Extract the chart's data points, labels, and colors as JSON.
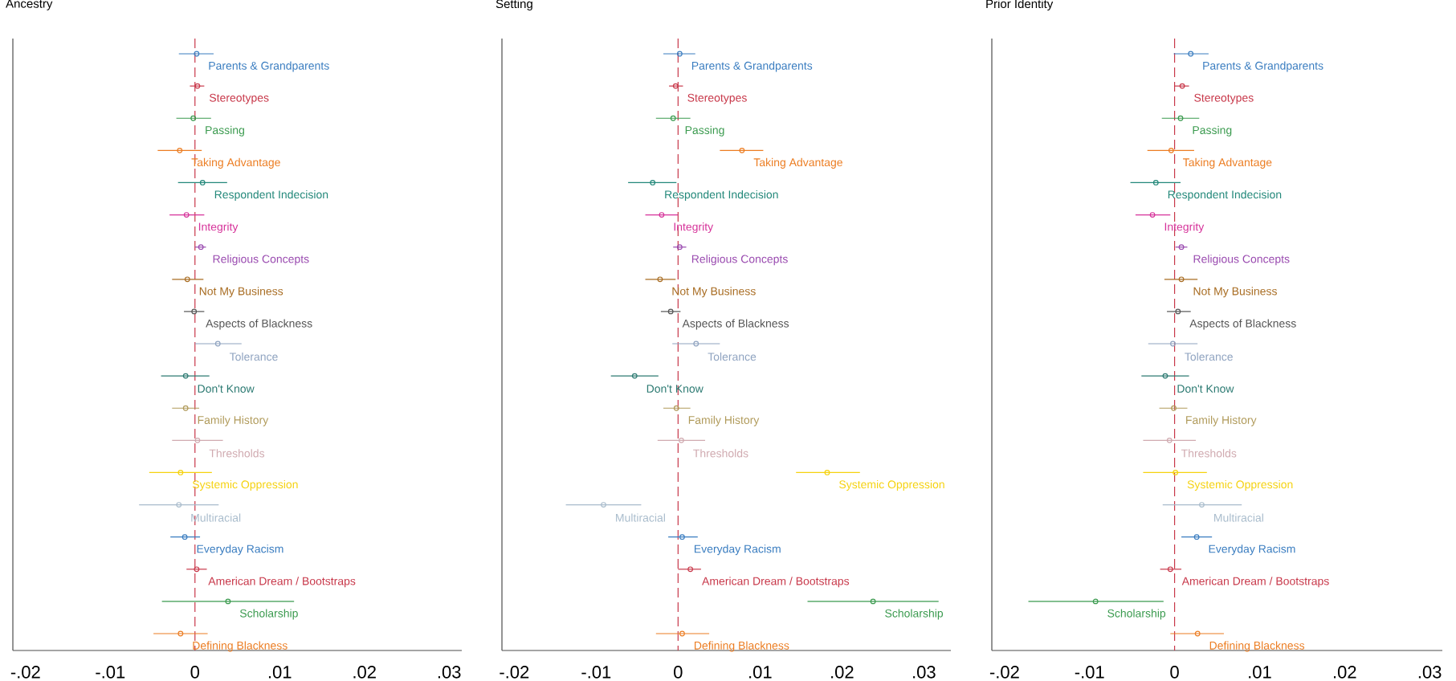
{
  "chart_data": [
    {
      "type": "scatter",
      "orientation": "horizontal",
      "title": "Ancestry",
      "marker": "circle",
      "tick_labels": "x",
      "categories": [
        "Parents & Grandparents",
        "Stereotypes",
        "Passing",
        "Taking Advantage",
        "Respondent Indecision",
        "Integrity",
        "Religious Concepts",
        "Not My Business",
        "Aspects of Blackness",
        "Tolerance",
        "Don't Know",
        "Family History",
        "Thresholds",
        "Systemic Oppression",
        "Multiracial",
        "Everyday Racism",
        "American Dream / Bootstraps",
        "Scholarship",
        "Defining Blackness"
      ],
      "colors": [
        "#3a7dc0",
        "#c8384a",
        "#3a9a4e",
        "#ec7d22",
        "#23887a",
        "#d6339a",
        "#9a4bb0",
        "#a86c22",
        "#555555",
        "#8fa3c0",
        "#2c7a72",
        "#b09a5a",
        "#d0aab0",
        "#f5d20f",
        "#a9bccc",
        "#3a7dc0",
        "#c8384a",
        "#3a9a4e",
        "#ec7d22"
      ],
      "values": [
        0.0002,
        0.0003,
        -0.0002,
        -0.0018,
        0.0009,
        -0.001,
        0.0007,
        -0.0009,
        -0.0001,
        0.0027,
        -0.0011,
        -0.0011,
        0.0003,
        -0.0017,
        -0.0019,
        -0.0012,
        0.0002,
        0.0039,
        -0.0017
      ],
      "errors": [
        [
          -0.0019,
          0.0022
        ],
        [
          -0.0006,
          0.0011
        ],
        [
          -0.0022,
          0.0019
        ],
        [
          -0.0044,
          0.0008
        ],
        [
          -0.002,
          0.0038
        ],
        [
          -0.003,
          0.0011
        ],
        [
          0.0,
          0.0013
        ],
        [
          -0.0027,
          0.001
        ],
        [
          -0.0013,
          0.0011
        ],
        [
          0.0,
          0.0055
        ],
        [
          -0.004,
          0.0017
        ],
        [
          -0.0027,
          0.0005
        ],
        [
          -0.0027,
          0.0033
        ],
        [
          -0.0054,
          0.002
        ],
        [
          -0.0066,
          0.0028
        ],
        [
          -0.0029,
          0.0006
        ],
        [
          -0.001,
          0.0014
        ],
        [
          -0.0039,
          0.0117
        ],
        [
          -0.0049,
          0.0015
        ]
      ],
      "xlim": [
        -0.0215,
        0.0315
      ],
      "xticks": [
        {
          "value": -0.02,
          "label": "-.02"
        },
        {
          "value": -0.01,
          "label": "-.01"
        },
        0,
        {
          "value": 0.01,
          "label": ".01"
        },
        {
          "value": 0.02,
          "label": ".02"
        },
        {
          "value": 0.03,
          "label": ".03"
        }
      ],
      "ref_lines": [
        {
          "axis": "x",
          "value": 0,
          "color": "#c8384a",
          "line_style": "dashed"
        }
      ]
    },
    {
      "type": "scatter",
      "orientation": "horizontal",
      "title": "Setting",
      "marker": "circle",
      "tick_labels": "x",
      "categories": [
        "Parents & Grandparents",
        "Stereotypes",
        "Passing",
        "Taking Advantage",
        "Respondent Indecision",
        "Integrity",
        "Religious Concepts",
        "Not My Business",
        "Aspects of Blackness",
        "Tolerance",
        "Don't Know",
        "Family History",
        "Thresholds",
        "Systemic Oppression",
        "Multiracial",
        "Everyday Racism",
        "American Dream / Bootstraps",
        "Scholarship",
        "Defining Blackness"
      ],
      "colors": [
        "#3a7dc0",
        "#c8384a",
        "#3a9a4e",
        "#ec7d22",
        "#23887a",
        "#d6339a",
        "#9a4bb0",
        "#a86c22",
        "#555555",
        "#8fa3c0",
        "#2c7a72",
        "#b09a5a",
        "#d0aab0",
        "#f5d20f",
        "#a9bccc",
        "#3a7dc0",
        "#c8384a",
        "#3a9a4e",
        "#ec7d22"
      ],
      "values": [
        0.0002,
        -0.0003,
        -0.0006,
        0.0078,
        -0.0031,
        -0.002,
        0.0002,
        -0.0022,
        -0.0009,
        0.0022,
        -0.0053,
        -0.0002,
        0.0004,
        0.0182,
        -0.0091,
        0.0005,
        0.0015,
        0.0238,
        0.0005
      ],
      "errors": [
        [
          -0.0018,
          0.0021
        ],
        [
          -0.0011,
          0.0006
        ],
        [
          -0.0027,
          0.0015
        ],
        [
          0.0051,
          0.0104
        ],
        [
          -0.0061,
          -0.0002
        ],
        [
          -0.004,
          0.0
        ],
        [
          -0.0006,
          0.001
        ],
        [
          -0.004,
          -0.0003
        ],
        [
          -0.0021,
          0.0003
        ],
        [
          -0.0007,
          0.0051
        ],
        [
          -0.0082,
          -0.0024
        ],
        [
          -0.0018,
          0.0015
        ],
        [
          -0.0025,
          0.0033
        ],
        [
          0.0144,
          0.0222
        ],
        [
          -0.0137,
          -0.0045
        ],
        [
          -0.0012,
          0.0024
        ],
        [
          0.0,
          0.0028
        ],
        [
          0.0158,
          0.0318
        ],
        [
          -0.0027,
          0.0038
        ]
      ],
      "xlim": [
        -0.0215,
        0.0333
      ],
      "xticks": [
        {
          "value": -0.02,
          "label": "-.02"
        },
        {
          "value": -0.01,
          "label": "-.01"
        },
        0,
        {
          "value": 0.01,
          "label": ".01"
        },
        {
          "value": 0.02,
          "label": ".02"
        },
        {
          "value": 0.03,
          "label": ".03"
        }
      ],
      "ref_lines": [
        {
          "axis": "x",
          "value": 0,
          "color": "#c8384a",
          "line_style": "dashed"
        }
      ]
    },
    {
      "type": "scatter",
      "orientation": "horizontal",
      "title": "Prior Identity",
      "marker": "circle",
      "tick_labels": "x",
      "categories": [
        "Parents & Grandparents",
        "Stereotypes",
        "Passing",
        "Taking Advantage",
        "Respondent Indecision",
        "Integrity",
        "Religious Concepts",
        "Not My Business",
        "Aspects of Blackness",
        "Tolerance",
        "Don't Know",
        "Family History",
        "Thresholds",
        "Systemic Oppression",
        "Multiracial",
        "Everyday Racism",
        "American Dream / Bootstraps",
        "Scholarship",
        "Defining Blackness"
      ],
      "colors": [
        "#3a7dc0",
        "#c8384a",
        "#3a9a4e",
        "#ec7d22",
        "#23887a",
        "#d6339a",
        "#9a4bb0",
        "#a86c22",
        "#555555",
        "#8fa3c0",
        "#2c7a72",
        "#b09a5a",
        "#d0aab0",
        "#f5d20f",
        "#a9bccc",
        "#3a7dc0",
        "#c8384a",
        "#3a9a4e",
        "#ec7d22"
      ],
      "values": [
        0.0019,
        0.0009,
        0.0007,
        -0.0004,
        -0.0022,
        -0.0026,
        0.0008,
        0.0008,
        0.0004,
        -0.0002,
        -0.0011,
        -0.0001,
        -0.0006,
        0.0001,
        0.0032,
        0.0026,
        -0.0005,
        -0.0093,
        0.0027
      ],
      "errors": [
        [
          -0.0001,
          0.004
        ],
        [
          0.0,
          0.0017
        ],
        [
          -0.0015,
          0.0029
        ],
        [
          -0.0032,
          0.0023
        ],
        [
          -0.0052,
          0.0007
        ],
        [
          -0.0046,
          -0.0005
        ],
        [
          0.0001,
          0.0015
        ],
        [
          -0.0012,
          0.0027
        ],
        [
          -0.0009,
          0.0019
        ],
        [
          -0.0031,
          0.0027
        ],
        [
          -0.0039,
          0.0017
        ],
        [
          -0.0018,
          0.0015
        ],
        [
          -0.0037,
          0.0025
        ],
        [
          -0.0037,
          0.0038
        ],
        [
          -0.0014,
          0.0079
        ],
        [
          0.0008,
          0.0044
        ],
        [
          -0.0017,
          0.0008
        ],
        [
          -0.0172,
          -0.0013
        ],
        [
          -0.0005,
          0.0058
        ]
      ],
      "xlim": [
        -0.0215,
        0.0315
      ],
      "xticks": [
        {
          "value": -0.02,
          "label": "-.02"
        },
        {
          "value": -0.01,
          "label": "-.01"
        },
        0,
        {
          "value": 0.01,
          "label": ".01"
        },
        {
          "value": 0.02,
          "label": ".02"
        },
        {
          "value": 0.03,
          "label": ".03"
        }
      ],
      "ref_lines": [
        {
          "axis": "x",
          "value": 0,
          "color": "#c8384a",
          "line_style": "dashed"
        }
      ]
    }
  ]
}
